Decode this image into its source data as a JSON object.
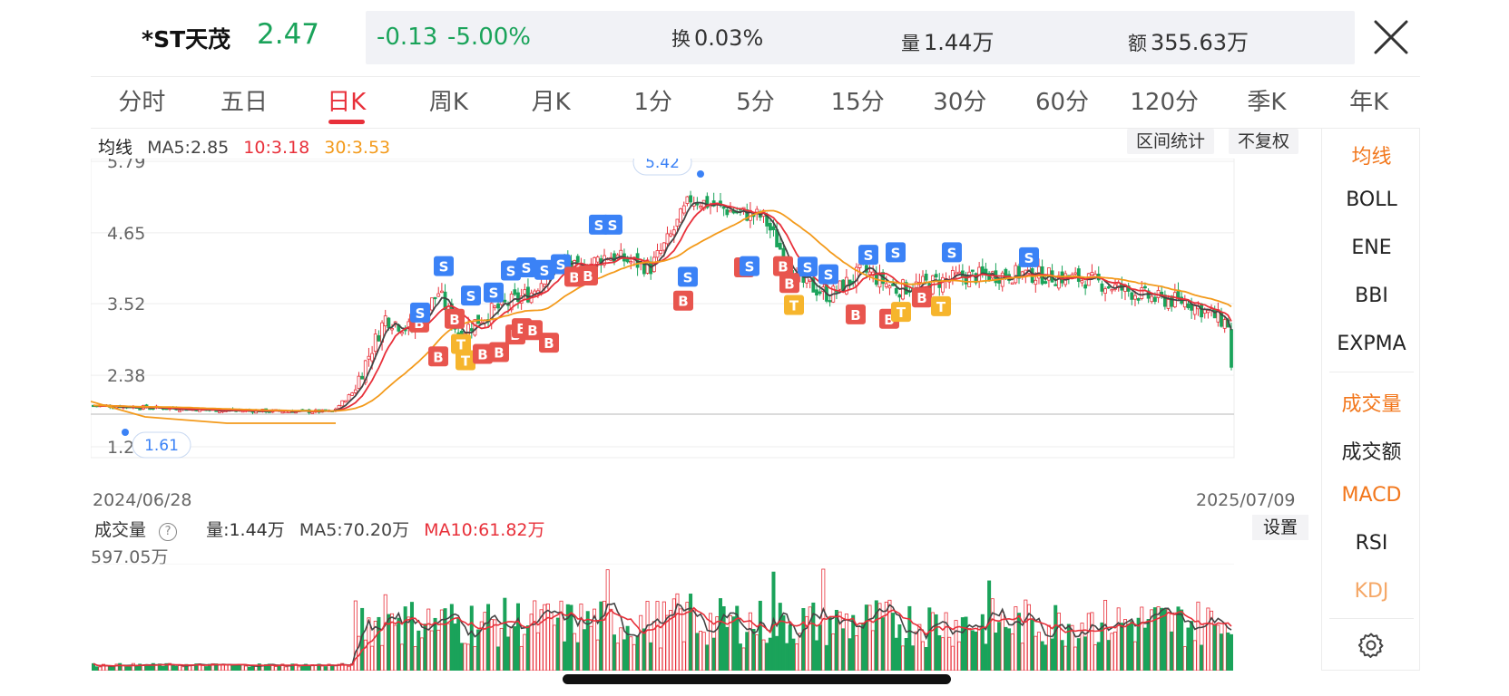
{
  "header": {
    "name": "*ST天茂",
    "price": "2.47",
    "change": "-0.13",
    "change_pct": "-5.00%",
    "turnover_label": "换",
    "turnover": "0.03%",
    "volume_label": "量",
    "volume": "1.44万",
    "amount_label": "额",
    "amount": "355.63万"
  },
  "tabs": [
    "分时",
    "五日",
    "日K",
    "周K",
    "月K",
    "1分",
    "5分",
    "15分",
    "30分",
    "60分",
    "120分",
    "季K",
    "年K"
  ],
  "active_tab": "日K",
  "ma_legend": {
    "title": "均线",
    "ma5": "MA5:2.85",
    "ma10": "10:3.18",
    "ma30": "30:3.53"
  },
  "chips": {
    "range_stats": "区间统计",
    "no_adjust": "不复权",
    "settings": "设置"
  },
  "price_axis": {
    "ticks": [
      "5.79",
      "4.65",
      "3.52",
      "2.38",
      "1.24"
    ],
    "high_marker": "5.42",
    "low_marker": "1.61"
  },
  "dates": {
    "start": "2024/06/28",
    "end": "2025/07/09"
  },
  "volume_legend": {
    "title": "成交量",
    "help": "?",
    "volume": "量:1.44万",
    "ma5": "MA5:70.20万",
    "ma10": "MA10:61.82万",
    "max": "597.05万"
  },
  "side_panel": {
    "items": [
      "均线",
      "BOLL",
      "ENE",
      "BBI",
      "EXPMA",
      "成交量",
      "成交额",
      "MACD",
      "RSI",
      "KDJ"
    ]
  },
  "colors": {
    "up": "#e8303a",
    "down": "#1aa35a",
    "ma5": "#444444",
    "ma10": "#e8303a",
    "ma30": "#f39a1b",
    "buy_badge": "#e8554e",
    "sell_badge": "#3b82f6",
    "t_badge": "#f6b52d"
  },
  "signals": [
    {
      "label": "B",
      "y": 3.22
    },
    {
      "label": "S",
      "y": 3.38
    },
    {
      "label": "B",
      "y": 2.68
    },
    {
      "label": "S",
      "y": 4.12
    },
    {
      "label": "B",
      "y": 3.28
    },
    {
      "label": "T",
      "y": 2.88
    },
    {
      "label": "T",
      "y": 2.62
    },
    {
      "label": "S",
      "y": 3.65
    },
    {
      "label": "B",
      "y": 2.72
    },
    {
      "label": "S",
      "y": 3.7
    },
    {
      "label": "B",
      "y": 2.75
    },
    {
      "label": "S",
      "y": 4.05
    },
    {
      "label": "B",
      "y": 3.03
    },
    {
      "label": "B",
      "y": 3.13
    },
    {
      "label": "S",
      "y": 4.1
    },
    {
      "label": "B",
      "y": 3.1
    },
    {
      "label": "S",
      "y": 4.06
    },
    {
      "label": "B",
      "y": 2.9
    },
    {
      "label": "S",
      "y": 4.15
    },
    {
      "label": "B",
      "y": 3.95
    },
    {
      "label": "B",
      "y": 3.97
    },
    {
      "label": "S",
      "y": 4.78
    },
    {
      "label": "S",
      "y": 4.78
    },
    {
      "label": "S",
      "y": 3.95
    },
    {
      "label": "B",
      "y": 3.57
    },
    {
      "label": "B",
      "y": 4.1
    },
    {
      "label": "S",
      "y": 4.12
    },
    {
      "label": "B",
      "y": 4.12
    },
    {
      "label": "S",
      "y": 4.11
    },
    {
      "label": "B",
      "y": 3.85
    },
    {
      "label": "T",
      "y": 3.5
    },
    {
      "label": "S",
      "y": 3.99
    },
    {
      "label": "B",
      "y": 3.35
    },
    {
      "label": "S",
      "y": 4.3
    },
    {
      "label": "B",
      "y": 3.28
    },
    {
      "label": "S",
      "y": 4.34
    },
    {
      "label": "T",
      "y": 3.39
    },
    {
      "label": "B",
      "y": 3.62
    },
    {
      "label": "T",
      "y": 3.48
    },
    {
      "label": "S",
      "y": 4.34
    },
    {
      "label": "S",
      "y": 4.26
    }
  ]
}
